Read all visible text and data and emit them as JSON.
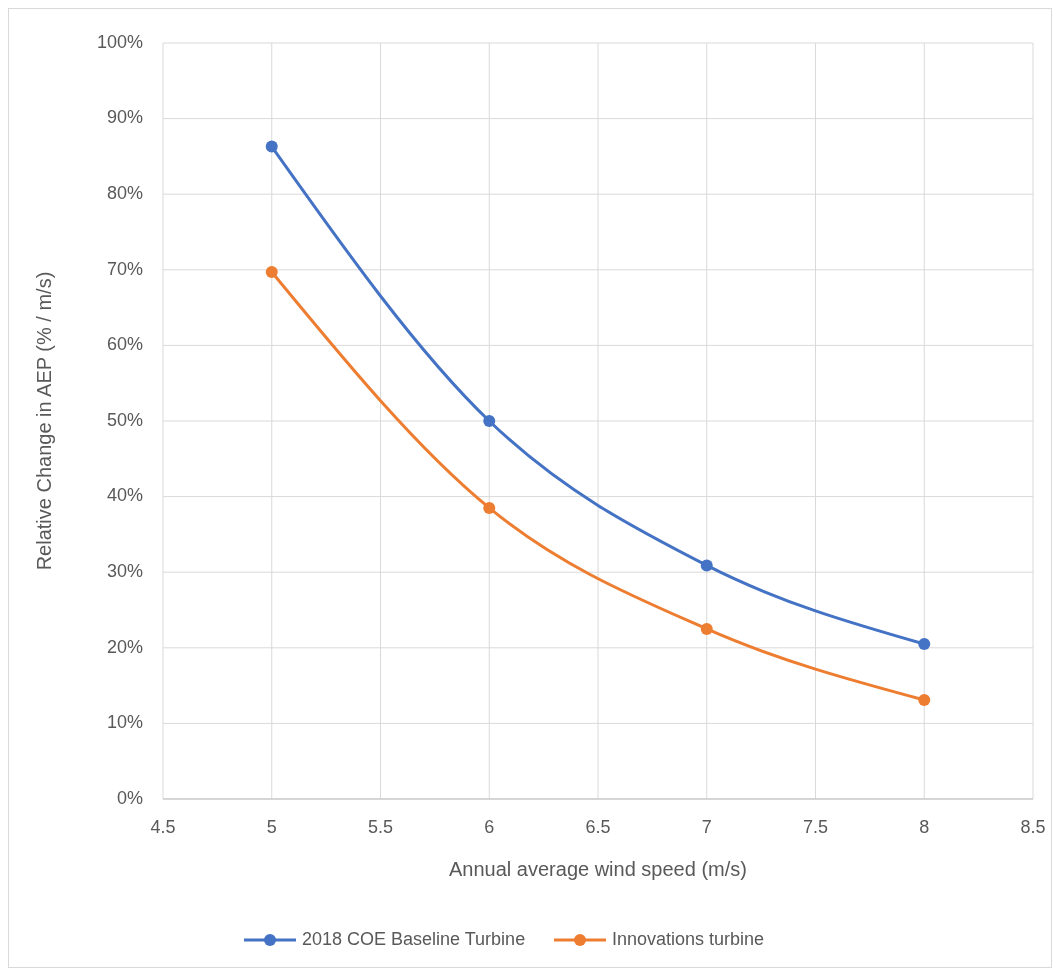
{
  "chart_data": {
    "type": "line",
    "xlabel": "Annual average wind speed (m/s)",
    "ylabel": "Relative Change in AEP (% / m/s)",
    "x": [
      5,
      6,
      7,
      8
    ],
    "series": [
      {
        "name": "2018 COE Baseline Turbine",
        "color": "#4472c4",
        "values": [
          86.3,
          50.0,
          30.9,
          20.5
        ]
      },
      {
        "name": "Innovations turbine",
        "color": "#ed7d31",
        "values": [
          69.7,
          38.5,
          22.5,
          13.1
        ]
      }
    ],
    "xlim": [
      4.5,
      8.5
    ],
    "xticks": [
      4.5,
      5,
      5.5,
      6,
      6.5,
      7,
      7.5,
      8,
      8.5
    ],
    "ylim": [
      0,
      100
    ],
    "yticks": [
      {
        "value": 0,
        "label": "0%"
      },
      {
        "value": 10,
        "label": "10%"
      },
      {
        "value": 20,
        "label": "20%"
      },
      {
        "value": 30,
        "label": "30%"
      },
      {
        "value": 40,
        "label": "40%"
      },
      {
        "value": 50,
        "label": "50%"
      },
      {
        "value": 60,
        "label": "60%"
      },
      {
        "value": 70,
        "label": "70%"
      },
      {
        "value": 80,
        "label": "80%"
      },
      {
        "value": 90,
        "label": "90%"
      },
      {
        "value": 100,
        "label": "100%"
      }
    ],
    "grid": true,
    "legend": "bottom",
    "marker": "circle",
    "line_style": "solid"
  }
}
